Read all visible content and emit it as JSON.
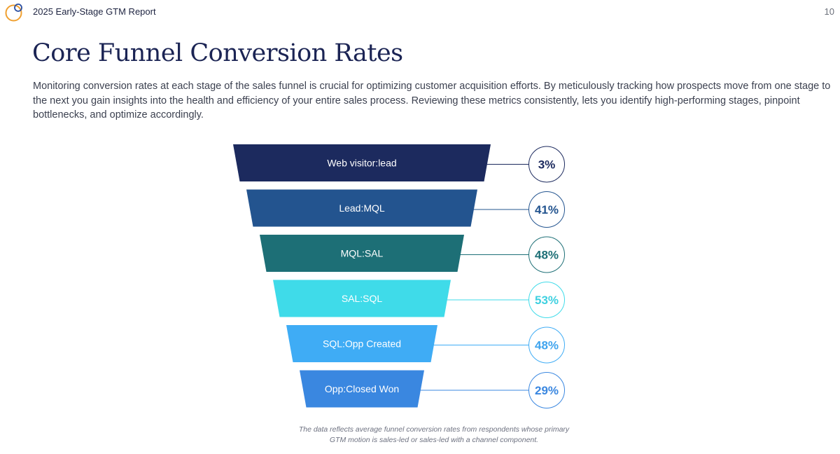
{
  "header": {
    "report_title": "2025 Early-Stage GTM Report",
    "page_number": "10",
    "logo_icon": "overlapping-circles-icon",
    "logo_colors": [
      "#f0a030",
      "#2a4ea0"
    ]
  },
  "page_title": "Core Funnel Conversion Rates",
  "intro": "Monitoring conversion rates at each stage of the sales funnel is crucial for optimizing customer acquisition efforts. By meticulously tracking how prospects move from one stage to the next you gain insights into the health and efficiency of your entire sales process. Reviewing these metrics consistently, lets you identify high-performing stages, pinpoint bottlenecks, and optimize accordingly.",
  "footnote": "The data reflects average funnel conversion rates from respondents whose primary GTM motion is sales-led or sales-led with a channel component.",
  "chart_data": {
    "type": "bar",
    "title": "",
    "categories": [
      "Web visitor:lead",
      "Lead:MQL",
      "MQL:SAL",
      "SAL:SQL",
      "SQL:Opp Created",
      "Opp:Closed Won"
    ],
    "values": [
      3,
      41,
      48,
      53,
      48,
      29
    ],
    "value_labels": [
      "3%",
      "41%",
      "48%",
      "53%",
      "48%",
      "29%"
    ],
    "unit": "%",
    "colors": [
      "#1c2a5e",
      "#23548f",
      "#1d6f76",
      "#3fdbe9",
      "#3facf5",
      "#3a87e0"
    ],
    "label_colors": [
      "#1c2a5e",
      "#23548f",
      "#1d6f76",
      "#3fd0e0",
      "#3fa4ee",
      "#3a87e0"
    ]
  }
}
